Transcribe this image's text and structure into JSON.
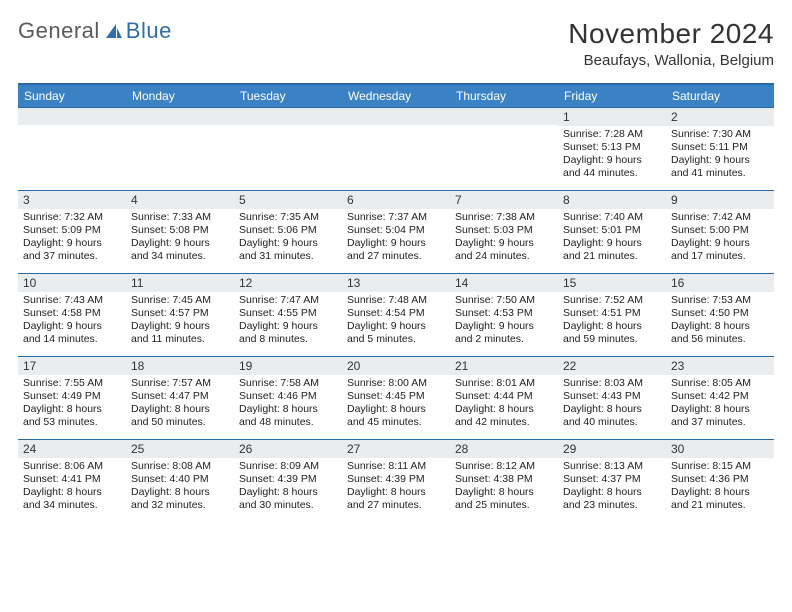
{
  "brand": {
    "part1": "General",
    "part2": "Blue"
  },
  "title": "November 2024",
  "location": "Beaufays, Wallonia, Belgium",
  "colors": {
    "header_bg": "#3b82c4",
    "border": "#2a6aa5",
    "date_bg": "#e9edf0",
    "title_color": "#333333",
    "text_color": "#222222",
    "brand_gray": "#5a5a5a",
    "brand_blue": "#2f6fa8"
  },
  "typography": {
    "title_fontsize": 28,
    "location_fontsize": 15,
    "dayhead_fontsize": 12,
    "datenum_fontsize": 12,
    "info_fontsize": 10.5
  },
  "layout": {
    "columns": 7,
    "rows": 5,
    "row_min_height": 82
  },
  "daynames": [
    "Sunday",
    "Monday",
    "Tuesday",
    "Wednesday",
    "Thursday",
    "Friday",
    "Saturday"
  ],
  "weeks": [
    [
      {
        "day": "",
        "sunrise": "",
        "sunset": "",
        "daylight": ""
      },
      {
        "day": "",
        "sunrise": "",
        "sunset": "",
        "daylight": ""
      },
      {
        "day": "",
        "sunrise": "",
        "sunset": "",
        "daylight": ""
      },
      {
        "day": "",
        "sunrise": "",
        "sunset": "",
        "daylight": ""
      },
      {
        "day": "",
        "sunrise": "",
        "sunset": "",
        "daylight": ""
      },
      {
        "day": "1",
        "sunrise": "Sunrise: 7:28 AM",
        "sunset": "Sunset: 5:13 PM",
        "daylight": "Daylight: 9 hours and 44 minutes."
      },
      {
        "day": "2",
        "sunrise": "Sunrise: 7:30 AM",
        "sunset": "Sunset: 5:11 PM",
        "daylight": "Daylight: 9 hours and 41 minutes."
      }
    ],
    [
      {
        "day": "3",
        "sunrise": "Sunrise: 7:32 AM",
        "sunset": "Sunset: 5:09 PM",
        "daylight": "Daylight: 9 hours and 37 minutes."
      },
      {
        "day": "4",
        "sunrise": "Sunrise: 7:33 AM",
        "sunset": "Sunset: 5:08 PM",
        "daylight": "Daylight: 9 hours and 34 minutes."
      },
      {
        "day": "5",
        "sunrise": "Sunrise: 7:35 AM",
        "sunset": "Sunset: 5:06 PM",
        "daylight": "Daylight: 9 hours and 31 minutes."
      },
      {
        "day": "6",
        "sunrise": "Sunrise: 7:37 AM",
        "sunset": "Sunset: 5:04 PM",
        "daylight": "Daylight: 9 hours and 27 minutes."
      },
      {
        "day": "7",
        "sunrise": "Sunrise: 7:38 AM",
        "sunset": "Sunset: 5:03 PM",
        "daylight": "Daylight: 9 hours and 24 minutes."
      },
      {
        "day": "8",
        "sunrise": "Sunrise: 7:40 AM",
        "sunset": "Sunset: 5:01 PM",
        "daylight": "Daylight: 9 hours and 21 minutes."
      },
      {
        "day": "9",
        "sunrise": "Sunrise: 7:42 AM",
        "sunset": "Sunset: 5:00 PM",
        "daylight": "Daylight: 9 hours and 17 minutes."
      }
    ],
    [
      {
        "day": "10",
        "sunrise": "Sunrise: 7:43 AM",
        "sunset": "Sunset: 4:58 PM",
        "daylight": "Daylight: 9 hours and 14 minutes."
      },
      {
        "day": "11",
        "sunrise": "Sunrise: 7:45 AM",
        "sunset": "Sunset: 4:57 PM",
        "daylight": "Daylight: 9 hours and 11 minutes."
      },
      {
        "day": "12",
        "sunrise": "Sunrise: 7:47 AM",
        "sunset": "Sunset: 4:55 PM",
        "daylight": "Daylight: 9 hours and 8 minutes."
      },
      {
        "day": "13",
        "sunrise": "Sunrise: 7:48 AM",
        "sunset": "Sunset: 4:54 PM",
        "daylight": "Daylight: 9 hours and 5 minutes."
      },
      {
        "day": "14",
        "sunrise": "Sunrise: 7:50 AM",
        "sunset": "Sunset: 4:53 PM",
        "daylight": "Daylight: 9 hours and 2 minutes."
      },
      {
        "day": "15",
        "sunrise": "Sunrise: 7:52 AM",
        "sunset": "Sunset: 4:51 PM",
        "daylight": "Daylight: 8 hours and 59 minutes."
      },
      {
        "day": "16",
        "sunrise": "Sunrise: 7:53 AM",
        "sunset": "Sunset: 4:50 PM",
        "daylight": "Daylight: 8 hours and 56 minutes."
      }
    ],
    [
      {
        "day": "17",
        "sunrise": "Sunrise: 7:55 AM",
        "sunset": "Sunset: 4:49 PM",
        "daylight": "Daylight: 8 hours and 53 minutes."
      },
      {
        "day": "18",
        "sunrise": "Sunrise: 7:57 AM",
        "sunset": "Sunset: 4:47 PM",
        "daylight": "Daylight: 8 hours and 50 minutes."
      },
      {
        "day": "19",
        "sunrise": "Sunrise: 7:58 AM",
        "sunset": "Sunset: 4:46 PM",
        "daylight": "Daylight: 8 hours and 48 minutes."
      },
      {
        "day": "20",
        "sunrise": "Sunrise: 8:00 AM",
        "sunset": "Sunset: 4:45 PM",
        "daylight": "Daylight: 8 hours and 45 minutes."
      },
      {
        "day": "21",
        "sunrise": "Sunrise: 8:01 AM",
        "sunset": "Sunset: 4:44 PM",
        "daylight": "Daylight: 8 hours and 42 minutes."
      },
      {
        "day": "22",
        "sunrise": "Sunrise: 8:03 AM",
        "sunset": "Sunset: 4:43 PM",
        "daylight": "Daylight: 8 hours and 40 minutes."
      },
      {
        "day": "23",
        "sunrise": "Sunrise: 8:05 AM",
        "sunset": "Sunset: 4:42 PM",
        "daylight": "Daylight: 8 hours and 37 minutes."
      }
    ],
    [
      {
        "day": "24",
        "sunrise": "Sunrise: 8:06 AM",
        "sunset": "Sunset: 4:41 PM",
        "daylight": "Daylight: 8 hours and 34 minutes."
      },
      {
        "day": "25",
        "sunrise": "Sunrise: 8:08 AM",
        "sunset": "Sunset: 4:40 PM",
        "daylight": "Daylight: 8 hours and 32 minutes."
      },
      {
        "day": "26",
        "sunrise": "Sunrise: 8:09 AM",
        "sunset": "Sunset: 4:39 PM",
        "daylight": "Daylight: 8 hours and 30 minutes."
      },
      {
        "day": "27",
        "sunrise": "Sunrise: 8:11 AM",
        "sunset": "Sunset: 4:39 PM",
        "daylight": "Daylight: 8 hours and 27 minutes."
      },
      {
        "day": "28",
        "sunrise": "Sunrise: 8:12 AM",
        "sunset": "Sunset: 4:38 PM",
        "daylight": "Daylight: 8 hours and 25 minutes."
      },
      {
        "day": "29",
        "sunrise": "Sunrise: 8:13 AM",
        "sunset": "Sunset: 4:37 PM",
        "daylight": "Daylight: 8 hours and 23 minutes."
      },
      {
        "day": "30",
        "sunrise": "Sunrise: 8:15 AM",
        "sunset": "Sunset: 4:36 PM",
        "daylight": "Daylight: 8 hours and 21 minutes."
      }
    ]
  ]
}
